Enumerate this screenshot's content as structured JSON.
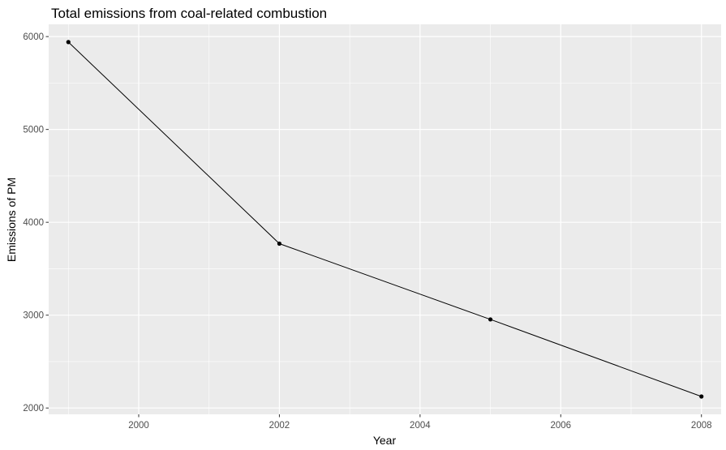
{
  "chart_data": {
    "type": "line",
    "title": "Total emissions from coal-related combustion",
    "xlabel": "Year",
    "ylabel": "Emissions of PM",
    "x": [
      1999,
      2002,
      2005,
      2008
    ],
    "series": [
      {
        "values": [
          5941,
          3770,
          2954,
          2124
        ]
      }
    ],
    "xlim": [
      1998.72,
      2008.28
    ],
    "ylim": [
      1932,
      6132
    ],
    "x_ticks": [
      2000,
      2002,
      2004,
      2006,
      2008
    ],
    "x_tick_labels": [
      "2000",
      "2002",
      "2004",
      "2006",
      "2008"
    ],
    "y_ticks": [
      2000,
      3000,
      4000,
      5000,
      6000
    ],
    "y_tick_labels": [
      "2000",
      "3000",
      "4000",
      "5000",
      "6000"
    ],
    "grid": true,
    "colors": {
      "panel": "#ebebeb",
      "grid": "#ffffff",
      "line": "#000000"
    }
  }
}
